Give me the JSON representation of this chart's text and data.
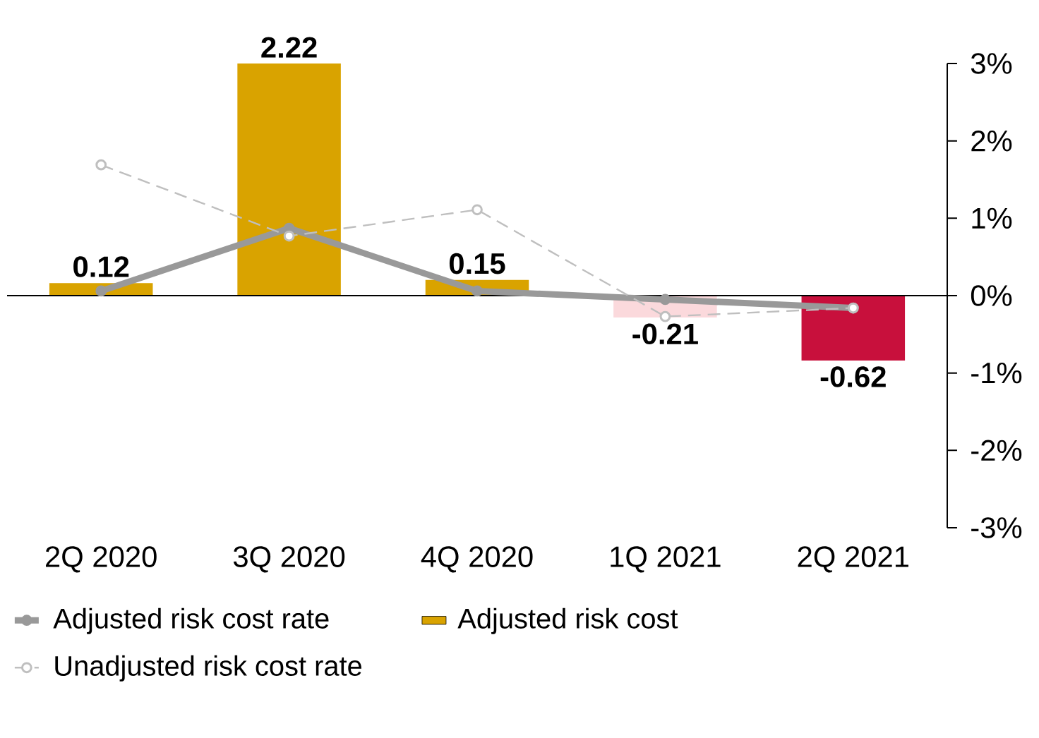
{
  "chart_data": {
    "type": "bar",
    "categories": [
      "2Q 2020",
      "3Q 2020",
      "4Q 2020",
      "1Q 2021",
      "2Q 2021"
    ],
    "series": [
      {
        "name": "Adjusted risk cost rate",
        "type": "line",
        "axis": "y2",
        "color": "#999999",
        "marker": "circle",
        "line_style": "solid",
        "values": [
          0.06,
          0.87,
          0.06,
          -0.05,
          -0.16
        ]
      },
      {
        "name": "Adjusted risk cost",
        "color": "#d9a300",
        "value_labels": [
          "0.12",
          "2.22",
          "0.15",
          "-0.21",
          "-0.62"
        ],
        "colors": [
          "#d9a300",
          "#d9a300",
          "#d9a300",
          "#fbd9dc",
          "#c8103c"
        ],
        "values": [
          0.12,
          2.22,
          0.15,
          -0.21,
          -0.62
        ]
      },
      {
        "name": "Unadjusted risk cost rate",
        "type": "line",
        "axis": "y2",
        "color": "#bfbfbf",
        "marker": "circle",
        "line_style": "dashed",
        "values": [
          1.69,
          0.77,
          1.11,
          -0.27,
          -0.16
        ]
      }
    ],
    "y2lim": [
      -3,
      3
    ],
    "y2ticks": [
      {
        "value": 3,
        "label": "3%"
      },
      {
        "value": 2,
        "label": "2%"
      },
      {
        "value": 1,
        "label": "1%"
      },
      {
        "value": 0,
        "label": "0%"
      },
      {
        "value": -1,
        "label": "-1%"
      },
      {
        "value": -2,
        "label": "-2%"
      },
      {
        "value": -3,
        "label": "-3%"
      }
    ],
    "legend": "bottom"
  }
}
